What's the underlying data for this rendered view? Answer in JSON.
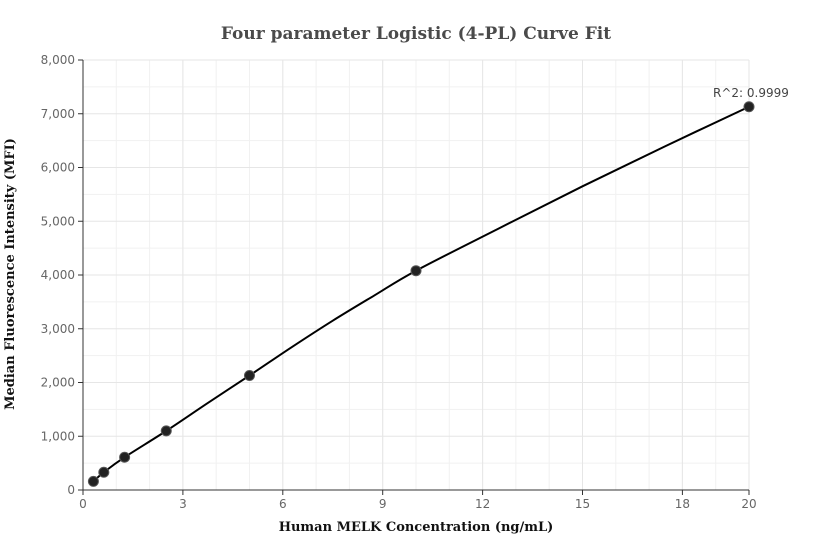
{
  "chart_data": {
    "type": "scatter",
    "title": "Four parameter Logistic (4-PL) Curve Fit",
    "xlabel": "Human MELK Concentration (ng/mL)",
    "ylabel": "Median Fluorescence Intensity (MFI)",
    "xlim": [
      0,
      20
    ],
    "ylim": [
      0,
      8000
    ],
    "x_ticks": [
      0,
      3,
      6,
      9,
      12,
      15,
      18,
      20
    ],
    "y_ticks": [
      0,
      1000,
      2000,
      3000,
      4000,
      5000,
      6000,
      7000,
      8000
    ],
    "x_tick_labels": [
      "0",
      "3",
      "6",
      "9",
      "12",
      "15",
      "18",
      "20"
    ],
    "y_tick_labels": [
      "0",
      "1,000",
      "2,000",
      "3,000",
      "4,000",
      "5,000",
      "6,000",
      "7,000",
      "8,000"
    ],
    "grid": true,
    "series": [
      {
        "points": [
          {
            "x": 0.3125,
            "y": 160
          },
          {
            "x": 0.625,
            "y": 330
          },
          {
            "x": 1.25,
            "y": 610
          },
          {
            "x": 2.5,
            "y": 1100
          },
          {
            "x": 5,
            "y": 2130
          },
          {
            "x": 10,
            "y": 4080
          },
          {
            "x": 20,
            "y": 7130
          }
        ]
      }
    ],
    "fit_curve": {
      "x": [
        0,
        0.3125,
        0.625,
        1.25,
        2.5,
        3.75,
        5,
        6.25,
        7.5,
        8.75,
        10,
        12.5,
        15,
        17.5,
        20
      ],
      "y": [
        30,
        160,
        330,
        610,
        1100,
        1620,
        2130,
        2650,
        3150,
        3620,
        4080,
        4870,
        5650,
        6400,
        7130
      ]
    },
    "annotations": [
      {
        "text": "R^2: 0.9999",
        "x": 20,
        "y": 7130
      }
    ],
    "colors": {
      "point": "#222222",
      "line": "#000000",
      "grid": "#e6e6e6",
      "axis": "#333333"
    }
  }
}
